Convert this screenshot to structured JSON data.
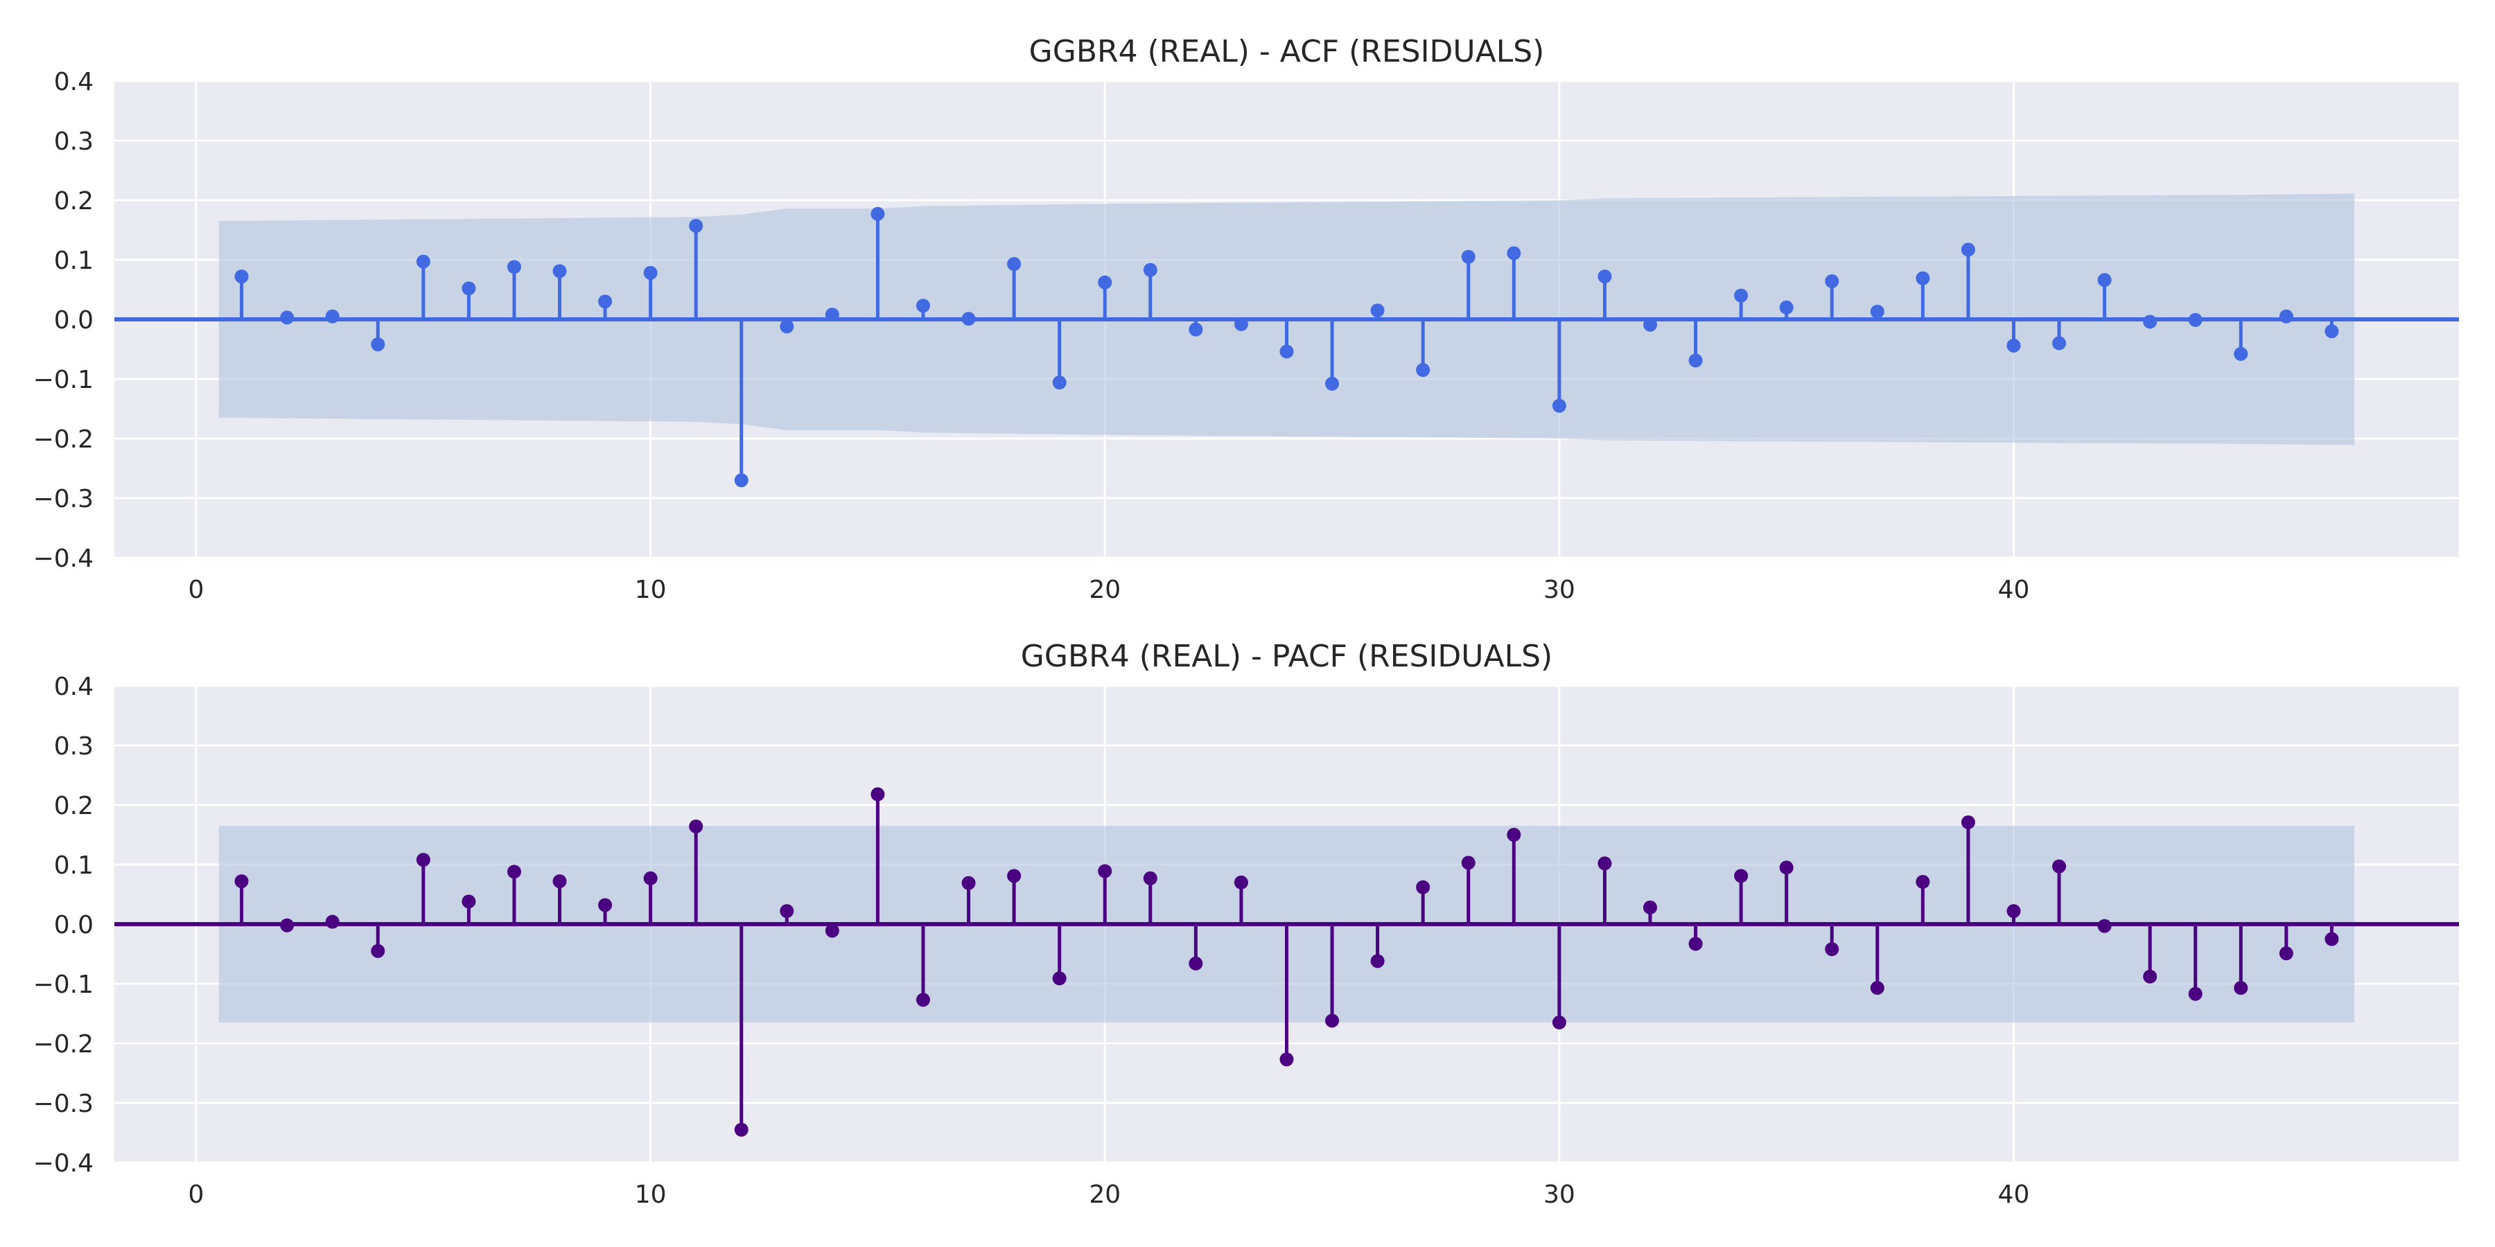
{
  "chart_data": [
    {
      "type": "stem",
      "title": "GGBR4 (REAL) - ACF (RESIDUALS)",
      "xlabel": "",
      "ylabel": "",
      "xlim": [
        -1.8,
        49.8
      ],
      "ylim": [
        -0.4,
        0.4
      ],
      "xticks": [
        0,
        10,
        20,
        30,
        40
      ],
      "yticks": [
        -0.4,
        -0.3,
        -0.2,
        -0.1,
        0.0,
        0.1,
        0.2,
        0.3,
        0.4
      ],
      "grid": true,
      "color": "#4169E1",
      "band_color": "#B0C4DE",
      "lags": [
        1,
        2,
        3,
        4,
        5,
        6,
        7,
        8,
        9,
        10,
        11,
        12,
        13,
        14,
        15,
        16,
        17,
        18,
        19,
        20,
        21,
        22,
        23,
        24,
        25,
        26,
        27,
        28,
        29,
        30,
        31,
        32,
        33,
        34,
        35,
        36,
        37,
        38,
        39,
        40,
        41,
        42,
        43,
        44,
        45,
        46,
        47
      ],
      "values": [
        0.072,
        0.003,
        0.005,
        -0.042,
        0.097,
        0.052,
        0.088,
        0.081,
        0.03,
        0.078,
        0.157,
        -0.27,
        -0.012,
        0.008,
        0.177,
        0.023,
        0.001,
        0.093,
        -0.106,
        0.062,
        0.083,
        -0.017,
        -0.008,
        -0.054,
        -0.108,
        0.015,
        -0.085,
        0.105,
        0.111,
        -0.145,
        0.072,
        -0.009,
        -0.069,
        0.04,
        0.02,
        0.064,
        0.013,
        0.069,
        0.117,
        -0.044,
        -0.04,
        0.066,
        -0.004,
        -0.001,
        -0.058,
        0.005,
        -0.02
      ],
      "conf_band": {
        "lags": [
          0.5,
          11,
          12,
          13,
          14,
          15,
          16,
          20,
          25,
          30,
          31,
          35,
          40,
          45,
          47.5
        ],
        "upper": [
          0.165,
          0.172,
          0.176,
          0.186,
          0.186,
          0.186,
          0.19,
          0.194,
          0.197,
          0.2,
          0.203,
          0.205,
          0.207,
          0.209,
          0.211
        ],
        "lower": [
          -0.165,
          -0.172,
          -0.176,
          -0.186,
          -0.186,
          -0.186,
          -0.19,
          -0.194,
          -0.197,
          -0.2,
          -0.203,
          -0.205,
          -0.207,
          -0.209,
          -0.211
        ]
      }
    },
    {
      "type": "stem",
      "title": "GGBR4 (REAL) - PACF (RESIDUALS)",
      "xlabel": "",
      "ylabel": "",
      "xlim": [
        -1.8,
        49.8
      ],
      "ylim": [
        -0.4,
        0.4
      ],
      "xticks": [
        0,
        10,
        20,
        30,
        40
      ],
      "yticks": [
        -0.4,
        -0.3,
        -0.2,
        -0.1,
        0.0,
        0.1,
        0.2,
        0.3,
        0.4
      ],
      "grid": true,
      "color": "#4B0082",
      "band_color": "#B0C4DE",
      "lags": [
        1,
        2,
        3,
        4,
        5,
        6,
        7,
        8,
        9,
        10,
        11,
        12,
        13,
        14,
        15,
        16,
        17,
        18,
        19,
        20,
        21,
        22,
        23,
        24,
        25,
        26,
        27,
        28,
        29,
        30,
        31,
        32,
        33,
        34,
        35,
        36,
        37,
        38,
        39,
        40,
        41,
        42,
        43,
        44,
        45,
        46,
        47
      ],
      "values": [
        0.072,
        -0.002,
        0.004,
        -0.045,
        0.108,
        0.038,
        0.088,
        0.072,
        0.032,
        0.077,
        0.164,
        -0.345,
        0.022,
        -0.011,
        0.218,
        -0.127,
        0.069,
        0.081,
        -0.091,
        0.089,
        0.077,
        -0.066,
        0.07,
        -0.227,
        -0.162,
        -0.062,
        0.062,
        0.103,
        0.15,
        -0.165,
        0.102,
        0.028,
        -0.033,
        0.081,
        0.095,
        -0.042,
        -0.107,
        0.071,
        0.171,
        0.022,
        0.097,
        -0.003,
        -0.088,
        -0.117,
        -0.107,
        -0.049,
        -0.025
      ],
      "conf_band": {
        "lags": [
          0.5,
          47.5
        ],
        "upper": [
          0.165,
          0.165
        ],
        "lower": [
          -0.165,
          -0.165
        ]
      }
    }
  ]
}
